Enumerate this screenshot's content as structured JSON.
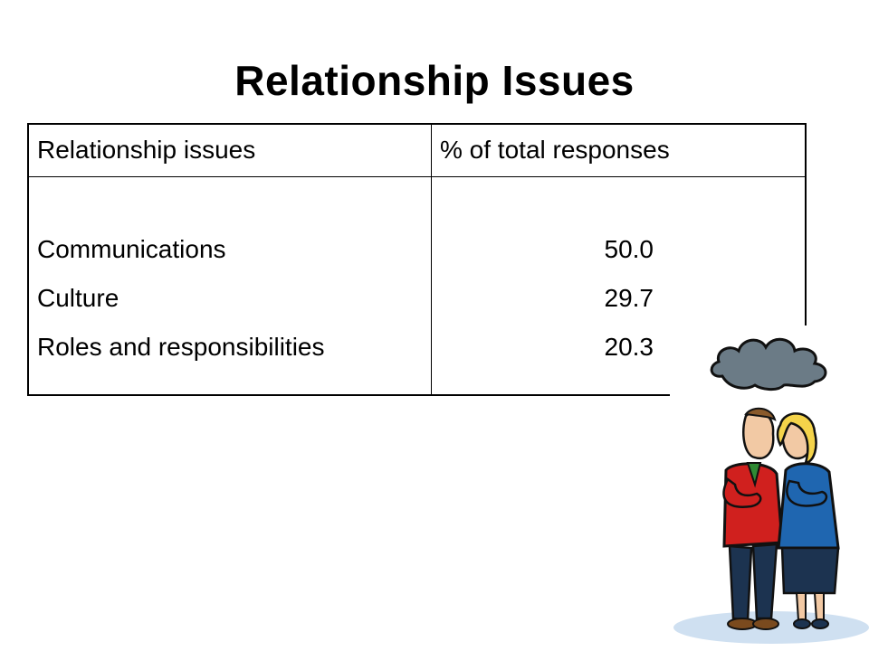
{
  "title": "Relationship Issues",
  "table": {
    "headers": [
      "Relationship  issues",
      "% of total responses"
    ],
    "rows": [
      {
        "issue": "Communications",
        "value": "50.0"
      },
      {
        "issue": "Culture",
        "value": "29.7"
      },
      {
        "issue": "Roles and responsibilities",
        "value": "20.3"
      }
    ]
  },
  "illustration": {
    "icon": "arguing-couple-rain-cloud",
    "colors": {
      "cloud": "#6b7b86",
      "man_jacket": "#d0201e",
      "woman_jacket": "#1f66b0",
      "pants": "#1c3350"
    }
  }
}
